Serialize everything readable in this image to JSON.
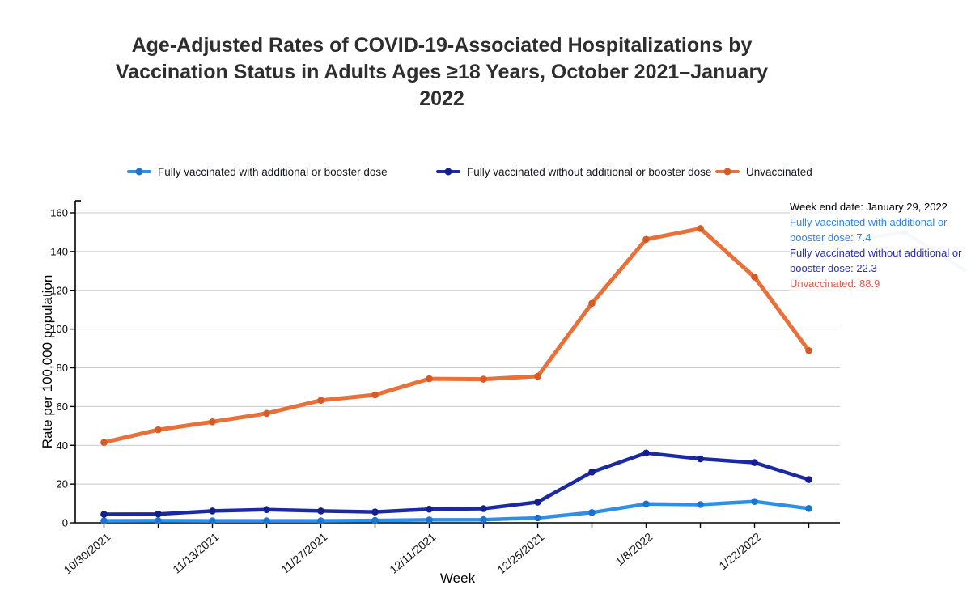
{
  "title": {
    "full": "Age-Adjusted Rates of COVID-19-Associated Hospitalizations by Vaccination Status in Adults Ages ≥18 Years, October 2021–January 2022",
    "lines": [
      "Age-Adjusted Rates of COVID-19-Associated Hospitalizations by",
      "Vaccination Status in Adults Ages ≥18 Years, October 2021–January",
      "2022"
    ]
  },
  "legend": {
    "items": [
      {
        "label": "Fully vaccinated with additional or booster dose",
        "color": "#2E8FE9",
        "dot_color": "#1D74CE"
      },
      {
        "label": "Fully vaccinated without additional or booster dose",
        "color": "#1B2AA3",
        "dot_color": "#141F8C"
      },
      {
        "label": "Unvaccinated",
        "color": "#E8713A",
        "dot_color": "#D65A24"
      }
    ]
  },
  "tooltip": {
    "header": "Week end date: January 29, 2022",
    "header_color": "#000000",
    "lines": [
      {
        "text": "Fully vaccinated with additional or booster dose: 7.4",
        "color": "#2E86E6"
      },
      {
        "text": "Fully vaccinated without additional or booster dose: 22.3",
        "color": "#2B2FA8"
      },
      {
        "text": "Unvaccinated: 88.9",
        "color": "#E15A41"
      }
    ]
  },
  "chart_data": {
    "type": "line",
    "x": [
      "10/30/2021",
      "11/6/2021",
      "11/13/2021",
      "11/20/2021",
      "11/27/2021",
      "12/4/2021",
      "12/11/2021",
      "12/18/2021",
      "12/25/2021",
      "1/1/2022",
      "1/8/2022",
      "1/15/2022",
      "1/22/2022",
      "1/29/2022"
    ],
    "x_tick_labels_shown": [
      "10/30/2021",
      "11/13/2021",
      "11/27/2021",
      "12/11/2021",
      "12/25/2021",
      "1/8/2022",
      "1/22/2022"
    ],
    "series": [
      {
        "name": "Fully vaccinated with additional or booster dose",
        "color": "#2E8FE9",
        "marker_color": "#1D74CE",
        "stroke_width": 4.5,
        "values": [
          1.0,
          1.1,
          1.0,
          1.0,
          1.0,
          1.2,
          1.5,
          1.6,
          2.5,
          5.3,
          9.7,
          9.4,
          11.0,
          7.4
        ]
      },
      {
        "name": "Fully vaccinated without additional or booster dose",
        "color": "#1B2AA3",
        "marker_color": "#141F8C",
        "stroke_width": 4.5,
        "values": [
          4.4,
          4.5,
          6.1,
          6.8,
          6.1,
          5.6,
          7.0,
          7.3,
          10.7,
          26.2,
          36.0,
          33.0,
          31.1,
          22.3
        ]
      },
      {
        "name": "Unvaccinated",
        "color": "#E8713A",
        "marker_color": "#D65A24",
        "stroke_width": 5,
        "values": [
          41.5,
          48.0,
          52.1,
          56.5,
          63.2,
          66.0,
          74.3,
          74.1,
          75.6,
          113.3,
          146.3,
          151.9,
          126.8,
          88.9
        ]
      }
    ],
    "xlabel": "Week",
    "ylabel": "Rate per 100,000 population",
    "ylim": [
      0,
      160
    ],
    "ytick_step": 20,
    "grid": true,
    "legend_position": "top",
    "axis_color": "#000000",
    "grid_color": "#c9c9c9"
  }
}
